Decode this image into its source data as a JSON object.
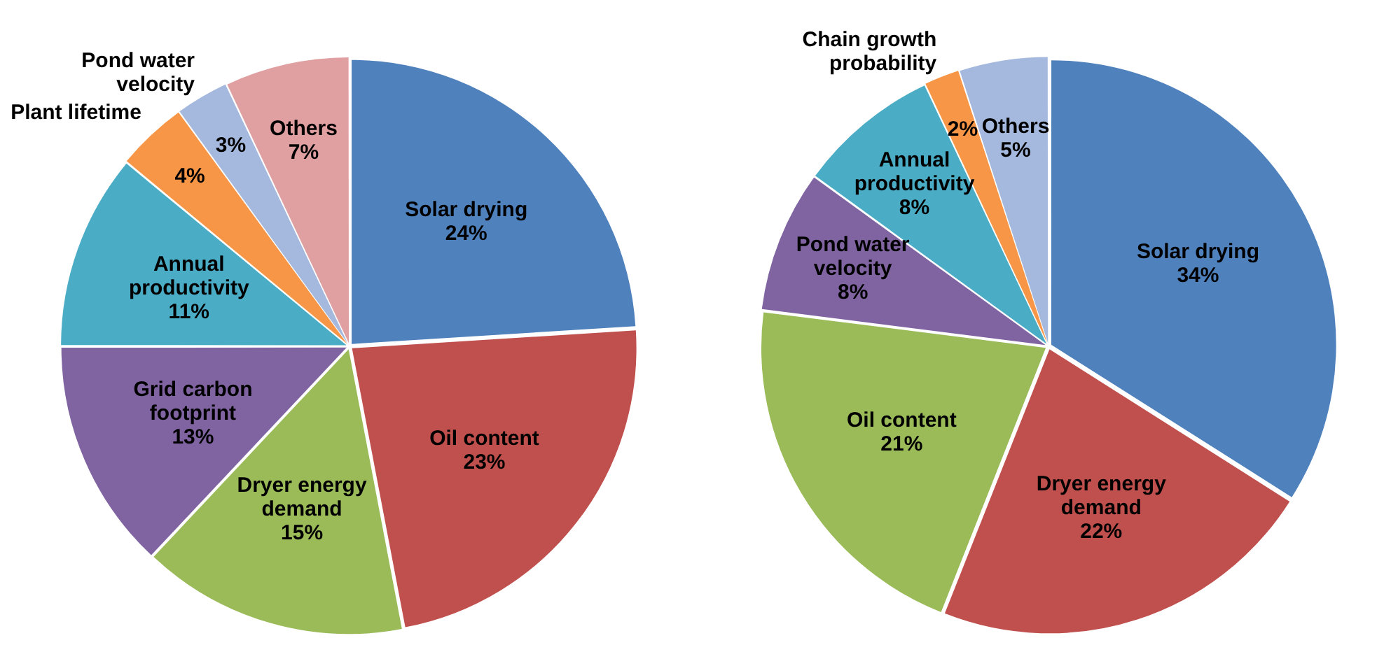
{
  "chart_data": [
    {
      "type": "pie",
      "categories": [
        "Solar drying",
        "Oil content",
        "Dryer energy demand",
        "Grid carbon footprint",
        "Annual productivity",
        "Plant lifetime",
        "Pond water velocity",
        "Others"
      ],
      "values": [
        24,
        23,
        15,
        13,
        11,
        4,
        3,
        7
      ],
      "value_labels": [
        "24%",
        "23%",
        "15%",
        "13%",
        "11%",
        "4%",
        "3%",
        "7%"
      ],
      "colors": [
        "#4f81bd",
        "#c0504d",
        "#9bbb59",
        "#8064a2",
        "#4bacc6",
        "#f79646",
        "#a5b8dd",
        "#e0a0a2"
      ],
      "legend": false
    },
    {
      "type": "pie",
      "categories": [
        "Solar drying",
        "Dryer energy demand",
        "Oil content",
        "Pond water velocity",
        "Annual productivity",
        "Chain growth probability",
        "Others"
      ],
      "values": [
        34,
        22,
        21,
        8,
        8,
        2,
        5
      ],
      "value_labels": [
        "34%",
        "22%",
        "21%",
        "8%",
        "8%",
        "2%",
        "5%"
      ],
      "colors": [
        "#4f81bd",
        "#c0504d",
        "#9bbb59",
        "#8064a2",
        "#4bacc6",
        "#f79646",
        "#a5b8dd"
      ],
      "legend": false
    }
  ]
}
